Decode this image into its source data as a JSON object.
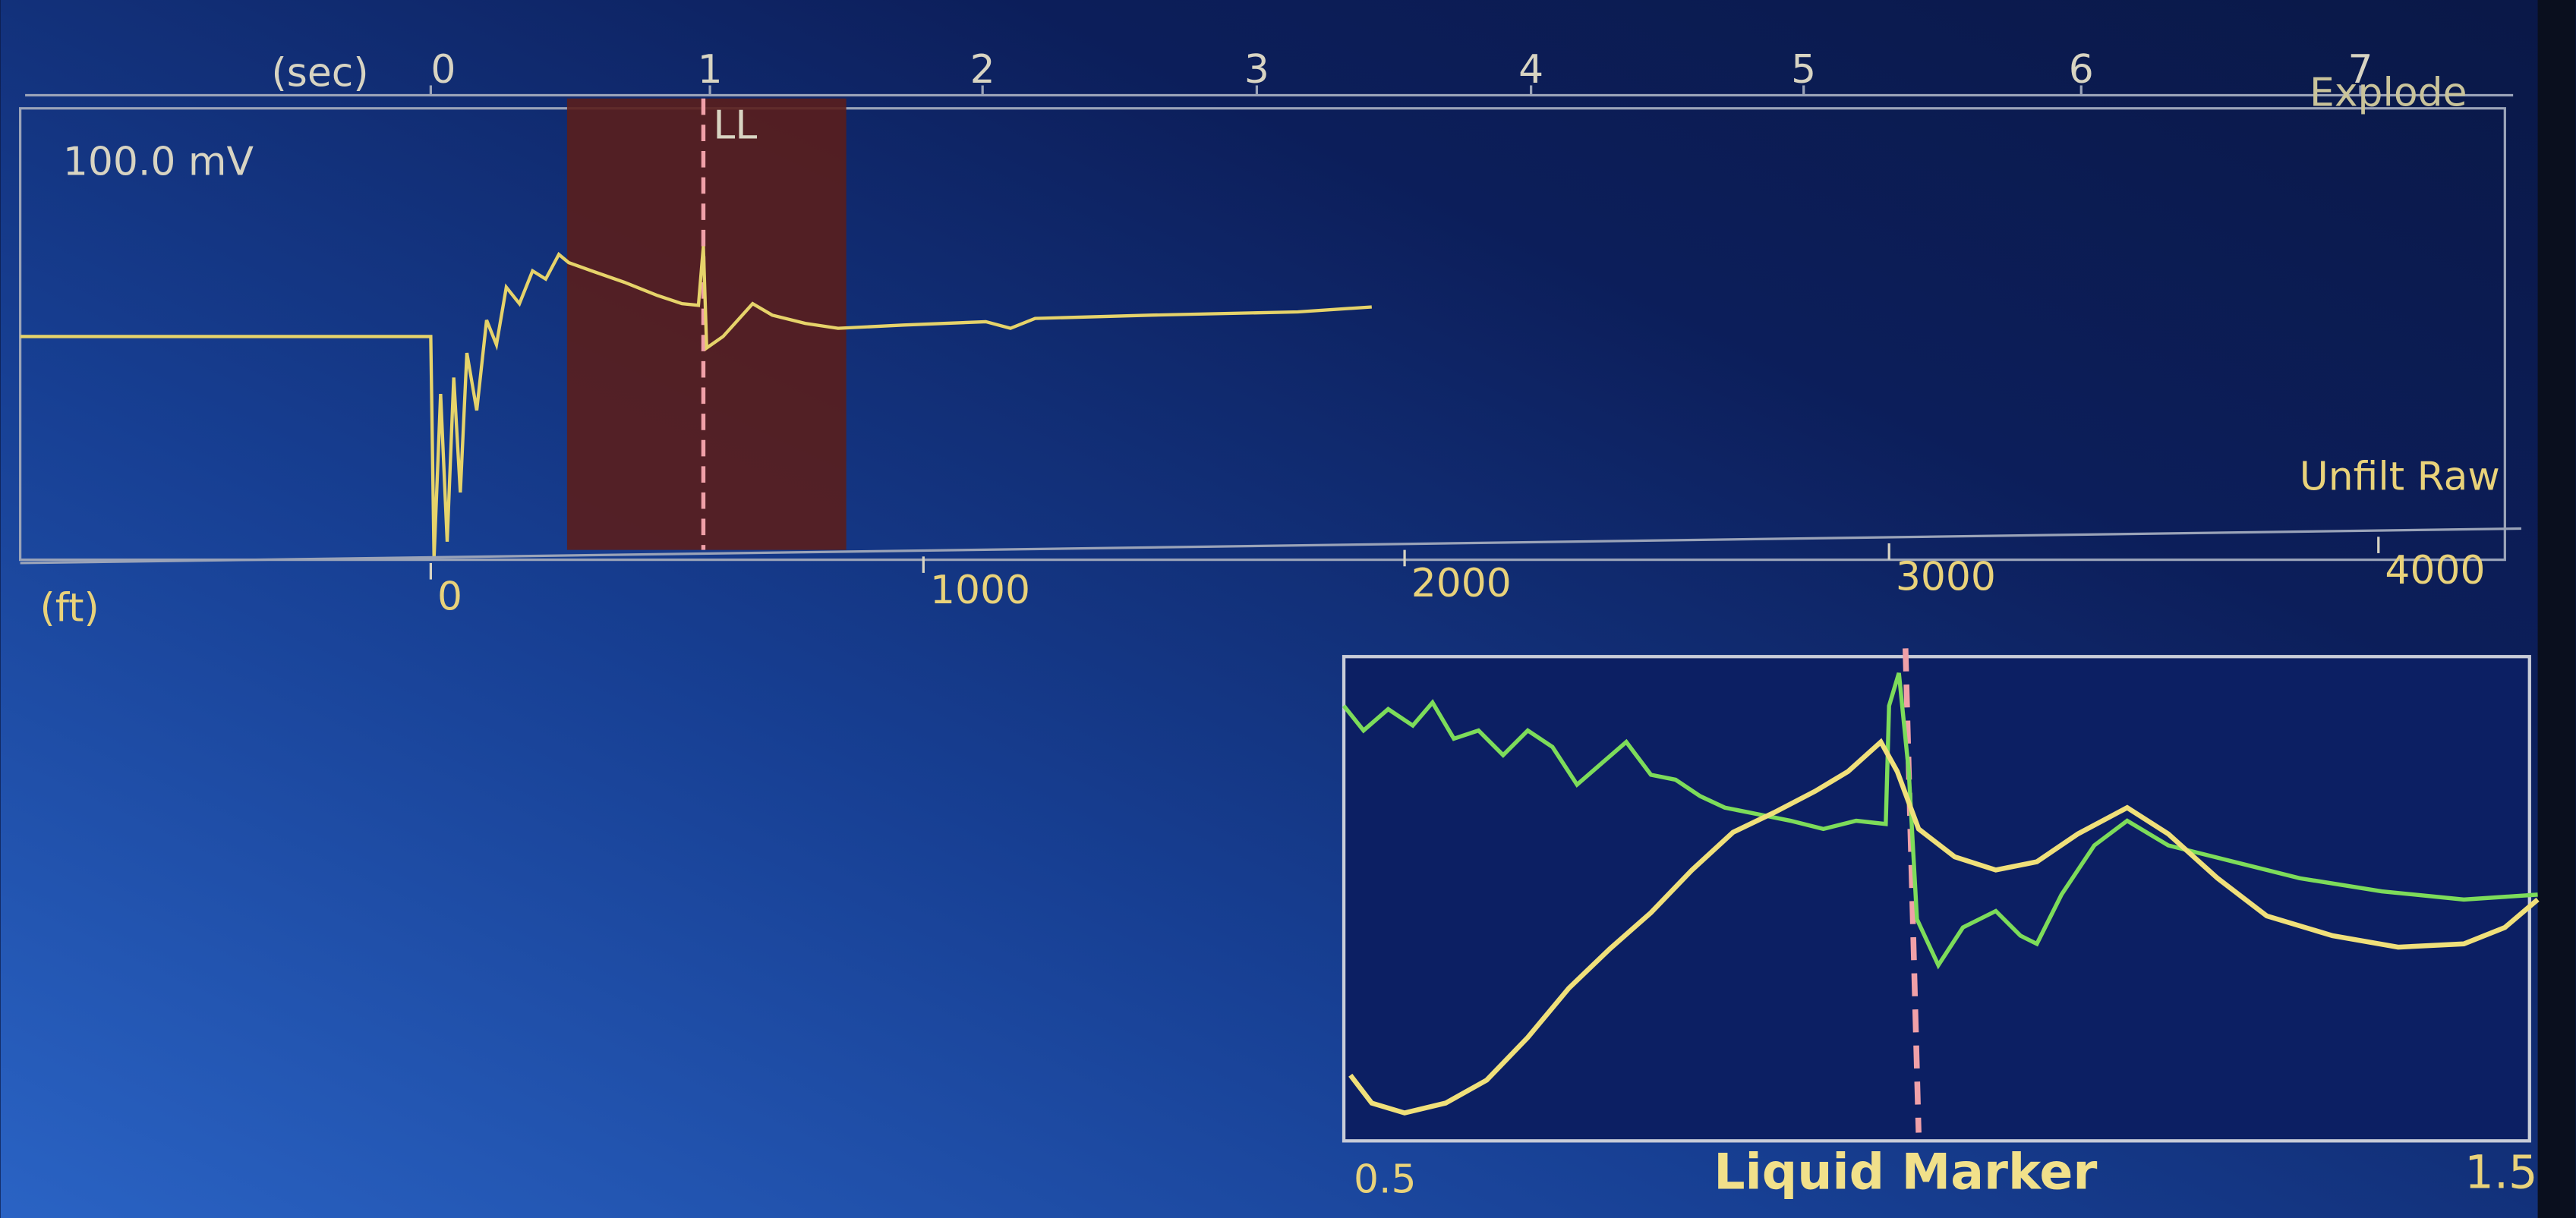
{
  "top_axis": {
    "unit": "(sec)",
    "ticks": [
      "0",
      "1",
      "2",
      "3",
      "4",
      "5",
      "6",
      "7"
    ]
  },
  "main_panel": {
    "scale": "100.0 mV",
    "marker": "LL",
    "button": "Explode",
    "mode": "Unfilt Raw"
  },
  "bottom_axis": {
    "unit": "(ft)",
    "ticks": [
      "0",
      "1000",
      "2000",
      "3000",
      "4000"
    ]
  },
  "inset": {
    "x_min": "0.5",
    "title": "Liquid Marker",
    "x_max": "1.5"
  }
}
